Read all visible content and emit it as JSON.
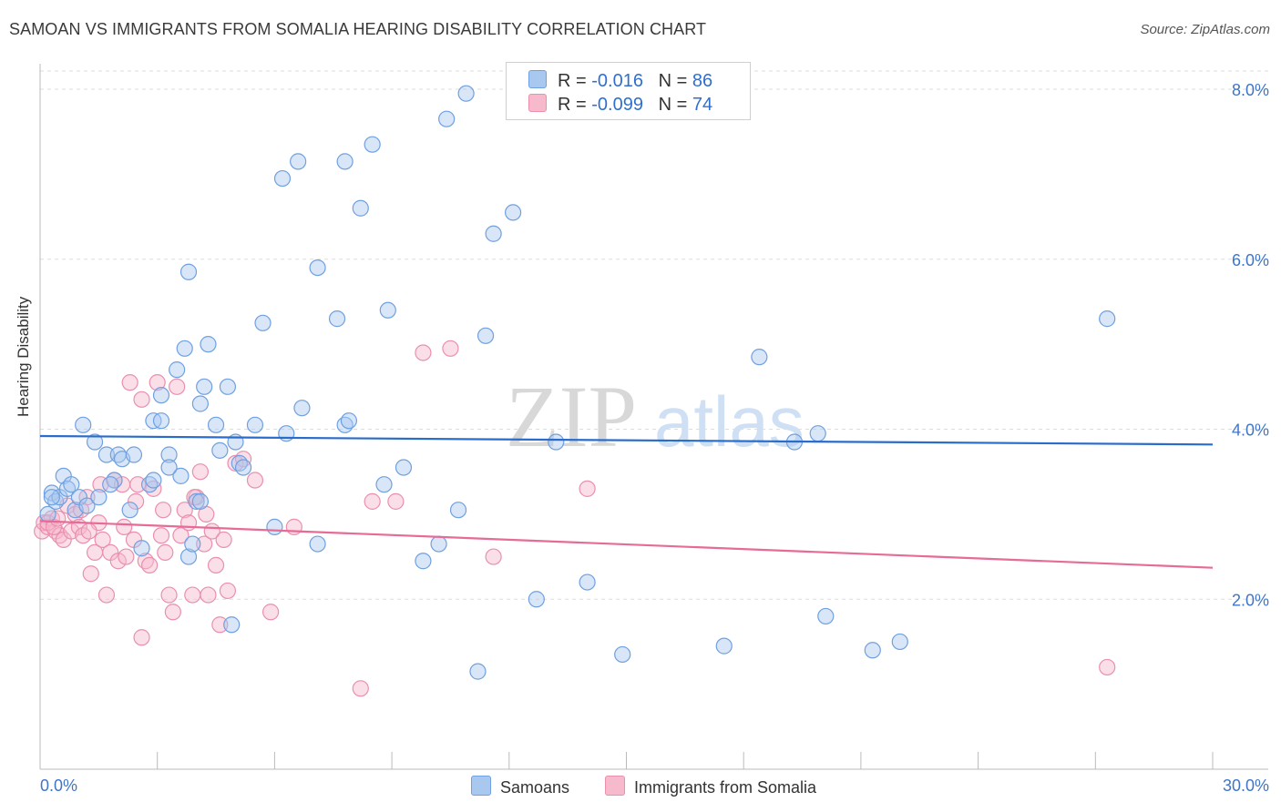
{
  "title": "SAMOAN VS IMMIGRANTS FROM SOMALIA HEARING DISABILITY CORRELATION CHART",
  "source": "Source: ZipAtlas.com",
  "watermark": {
    "zip": "ZIP",
    "atlas": "atlas"
  },
  "colors": {
    "blue_fill": "#a9c8f0",
    "blue_stroke": "#6fa0e0",
    "blue_line": "#2a6ccc",
    "pink_fill": "#f7b9cc",
    "pink_stroke": "#ea8fae",
    "pink_line": "#e66b96",
    "axis_text": "#3f75c8",
    "grid": "#dddddd"
  },
  "legend": {
    "rows": [
      {
        "r_label": "R =",
        "r_value": "-0.016",
        "n_label": "N =",
        "n_value": "86"
      },
      {
        "r_label": "R =",
        "r_value": "-0.099",
        "n_label": "N =",
        "n_value": "74"
      }
    ]
  },
  "bottom_legend": {
    "series1": "Samoans",
    "series2": "Immigrants from Somalia"
  },
  "chart_data": {
    "type": "scatter",
    "title": "SAMOAN VS IMMIGRANTS FROM SOMALIA HEARING DISABILITY CORRELATION CHART",
    "xlabel": "",
    "ylabel": "Hearing Disability",
    "xlim": [
      0,
      30
    ],
    "ylim": [
      0,
      8.3
    ],
    "x_tick_labels": [
      "0.0%",
      "30.0%"
    ],
    "y_ticks": [
      2,
      4,
      6,
      8
    ],
    "y_tick_labels": [
      "2.0%",
      "4.0%",
      "6.0%",
      "8.0%"
    ],
    "grid": "horizontal dashed",
    "legend_position": "top-center",
    "series": [
      {
        "name": "Samoans",
        "color": "#a9c8f0",
        "trend": {
          "x": [
            0,
            30
          ],
          "y": [
            3.92,
            3.82
          ]
        },
        "points": [
          [
            0.2,
            3.0
          ],
          [
            0.3,
            3.25
          ],
          [
            0.4,
            3.15
          ],
          [
            0.5,
            3.2
          ],
          [
            0.6,
            3.45
          ],
          [
            0.7,
            3.3
          ],
          [
            0.9,
            3.05
          ],
          [
            1.0,
            3.2
          ],
          [
            1.1,
            4.05
          ],
          [
            1.2,
            3.1
          ],
          [
            1.4,
            3.85
          ],
          [
            1.5,
            3.2
          ],
          [
            1.7,
            3.7
          ],
          [
            1.9,
            3.4
          ],
          [
            2.0,
            3.7
          ],
          [
            2.1,
            3.65
          ],
          [
            2.3,
            3.05
          ],
          [
            2.4,
            3.7
          ],
          [
            2.6,
            2.6
          ],
          [
            2.8,
            3.35
          ],
          [
            2.9,
            4.1
          ],
          [
            3.1,
            4.4
          ],
          [
            3.1,
            4.1
          ],
          [
            3.3,
            3.7
          ],
          [
            3.5,
            4.7
          ],
          [
            3.6,
            3.45
          ],
          [
            3.7,
            4.95
          ],
          [
            3.8,
            5.85
          ],
          [
            3.8,
            2.5
          ],
          [
            3.9,
            2.65
          ],
          [
            4.0,
            3.15
          ],
          [
            4.1,
            4.3
          ],
          [
            4.2,
            4.5
          ],
          [
            4.3,
            5.0
          ],
          [
            4.5,
            4.05
          ],
          [
            4.6,
            3.75
          ],
          [
            4.8,
            4.5
          ],
          [
            4.9,
            1.7
          ],
          [
            5.0,
            3.85
          ],
          [
            5.1,
            3.6
          ],
          [
            5.2,
            3.55
          ],
          [
            5.5,
            4.05
          ],
          [
            5.7,
            5.25
          ],
          [
            6.0,
            2.85
          ],
          [
            6.2,
            6.95
          ],
          [
            6.3,
            3.95
          ],
          [
            6.6,
            7.15
          ],
          [
            6.7,
            4.25
          ],
          [
            7.1,
            2.65
          ],
          [
            7.1,
            5.9
          ],
          [
            7.6,
            5.3
          ],
          [
            7.8,
            7.15
          ],
          [
            7.8,
            4.05
          ],
          [
            7.9,
            4.1
          ],
          [
            8.2,
            6.6
          ],
          [
            8.5,
            7.35
          ],
          [
            8.8,
            3.35
          ],
          [
            8.9,
            5.4
          ],
          [
            9.3,
            3.55
          ],
          [
            9.8,
            2.45
          ],
          [
            10.2,
            2.65
          ],
          [
            10.4,
            7.65
          ],
          [
            10.7,
            3.05
          ],
          [
            10.9,
            7.95
          ],
          [
            11.2,
            1.15
          ],
          [
            11.4,
            5.1
          ],
          [
            11.6,
            6.3
          ],
          [
            12.1,
            6.55
          ],
          [
            12.7,
            2.0
          ],
          [
            13.2,
            3.85
          ],
          [
            14.0,
            2.2
          ],
          [
            14.9,
            1.35
          ],
          [
            17.5,
            1.45
          ],
          [
            18.4,
            4.85
          ],
          [
            19.3,
            3.85
          ],
          [
            19.9,
            3.95
          ],
          [
            20.1,
            1.8
          ],
          [
            21.3,
            1.4
          ],
          [
            22.0,
            1.5
          ],
          [
            27.3,
            5.3
          ],
          [
            0.3,
            3.2
          ],
          [
            0.8,
            3.35
          ],
          [
            1.8,
            3.35
          ],
          [
            2.9,
            3.4
          ],
          [
            3.3,
            3.55
          ],
          [
            4.1,
            3.15
          ]
        ]
      },
      {
        "name": "Immigrants from Somalia",
        "color": "#f7b9cc",
        "trend": {
          "x": [
            0,
            30
          ],
          "y": [
            2.92,
            2.37
          ]
        },
        "points": [
          [
            0.05,
            2.8
          ],
          [
            0.1,
            2.9
          ],
          [
            0.2,
            2.85
          ],
          [
            0.3,
            2.95
          ],
          [
            0.4,
            2.8
          ],
          [
            0.5,
            2.75
          ],
          [
            0.6,
            2.7
          ],
          [
            0.7,
            3.1
          ],
          [
            0.8,
            2.8
          ],
          [
            0.9,
            3.0
          ],
          [
            1.0,
            2.85
          ],
          [
            1.1,
            2.75
          ],
          [
            1.2,
            3.2
          ],
          [
            1.3,
            2.3
          ],
          [
            1.4,
            2.55
          ],
          [
            1.5,
            2.9
          ],
          [
            1.6,
            2.7
          ],
          [
            1.7,
            2.05
          ],
          [
            1.8,
            2.55
          ],
          [
            1.9,
            3.4
          ],
          [
            2.0,
            2.45
          ],
          [
            2.1,
            3.35
          ],
          [
            2.2,
            2.5
          ],
          [
            2.3,
            4.55
          ],
          [
            2.4,
            2.7
          ],
          [
            2.5,
            3.35
          ],
          [
            2.6,
            1.55
          ],
          [
            2.6,
            4.35
          ],
          [
            2.7,
            2.45
          ],
          [
            2.8,
            2.4
          ],
          [
            2.9,
            3.3
          ],
          [
            3.0,
            4.55
          ],
          [
            3.1,
            2.75
          ],
          [
            3.2,
            2.55
          ],
          [
            3.3,
            2.05
          ],
          [
            3.4,
            1.85
          ],
          [
            3.5,
            4.5
          ],
          [
            3.6,
            2.75
          ],
          [
            3.7,
            3.05
          ],
          [
            3.8,
            2.9
          ],
          [
            3.9,
            2.05
          ],
          [
            4.0,
            3.2
          ],
          [
            4.1,
            3.5
          ],
          [
            4.2,
            2.65
          ],
          [
            4.3,
            2.05
          ],
          [
            4.4,
            2.8
          ],
          [
            4.5,
            2.4
          ],
          [
            4.6,
            1.7
          ],
          [
            4.7,
            2.7
          ],
          [
            4.8,
            2.1
          ],
          [
            5.0,
            3.6
          ],
          [
            5.2,
            3.65
          ],
          [
            5.5,
            3.4
          ],
          [
            5.9,
            1.85
          ],
          [
            6.5,
            2.85
          ],
          [
            8.2,
            0.95
          ],
          [
            8.5,
            3.15
          ],
          [
            9.1,
            3.15
          ],
          [
            9.8,
            4.9
          ],
          [
            10.5,
            4.95
          ],
          [
            11.6,
            2.5
          ],
          [
            14.0,
            3.3
          ],
          [
            27.3,
            1.2
          ],
          [
            0.2,
            2.9
          ],
          [
            0.35,
            2.85
          ],
          [
            0.45,
            2.95
          ],
          [
            1.05,
            3.05
          ],
          [
            1.25,
            2.8
          ],
          [
            2.15,
            2.85
          ],
          [
            3.15,
            3.05
          ],
          [
            3.95,
            3.2
          ],
          [
            4.25,
            3.0
          ],
          [
            1.55,
            3.35
          ],
          [
            2.45,
            3.15
          ]
        ]
      }
    ]
  }
}
